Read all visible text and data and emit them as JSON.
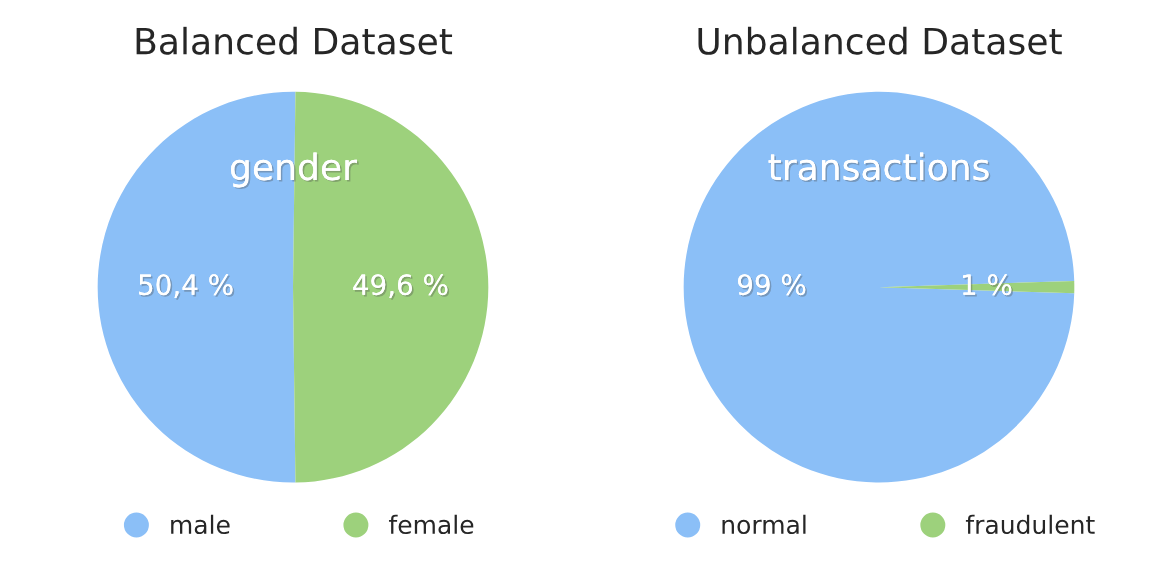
{
  "chart_data": [
    {
      "type": "pie",
      "title": "Balanced Dataset",
      "categories": [
        "male",
        "female"
      ],
      "values": [
        50.4,
        49.6
      ],
      "colors": [
        "#8bbff7",
        "#9dd17c"
      ],
      "value_labels": [
        "50,4 %",
        "49,6 %"
      ],
      "annotations": [
        "gender"
      ],
      "legend": "bottom"
    },
    {
      "type": "pie",
      "title": "Unbalanced Dataset",
      "categories": [
        "normal",
        "fraudulent"
      ],
      "values": [
        99,
        1
      ],
      "colors": [
        "#8bbff7",
        "#9dd17c"
      ],
      "value_labels": [
        "99 %",
        "1 %"
      ],
      "annotations": [
        "transactions"
      ],
      "legend": "bottom"
    }
  ]
}
